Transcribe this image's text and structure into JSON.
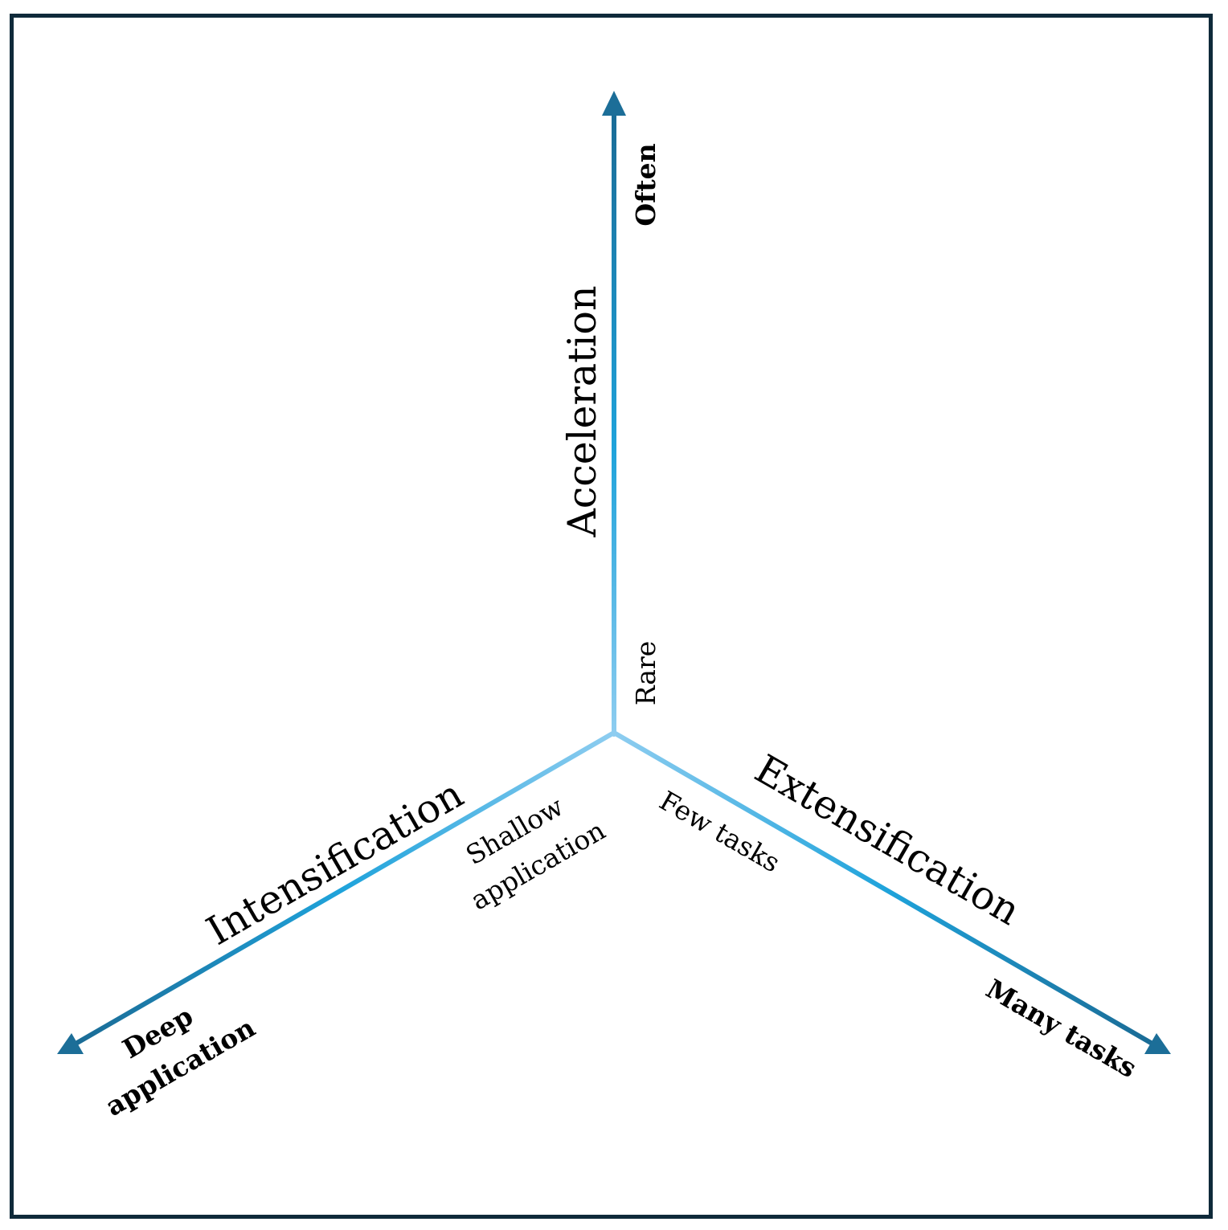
{
  "axes": {
    "acceleration": {
      "title": "Acceleration",
      "low": "Rare",
      "high": "Often"
    },
    "intensification": {
      "title": "Intensification",
      "low_line1": "Shallow",
      "low_line2": "application",
      "high_line1": "Deep",
      "high_line2": "application"
    },
    "extensification": {
      "title": "Extensification",
      "low": "Few tasks",
      "high": "Many tasks"
    }
  },
  "colors": {
    "frame": "#0f2a3a",
    "axis_light": "#8ecdf0",
    "axis_mid": "#1fa3db",
    "axis_dark": "#1a6a94",
    "arrowhead": "#1c6e98"
  }
}
